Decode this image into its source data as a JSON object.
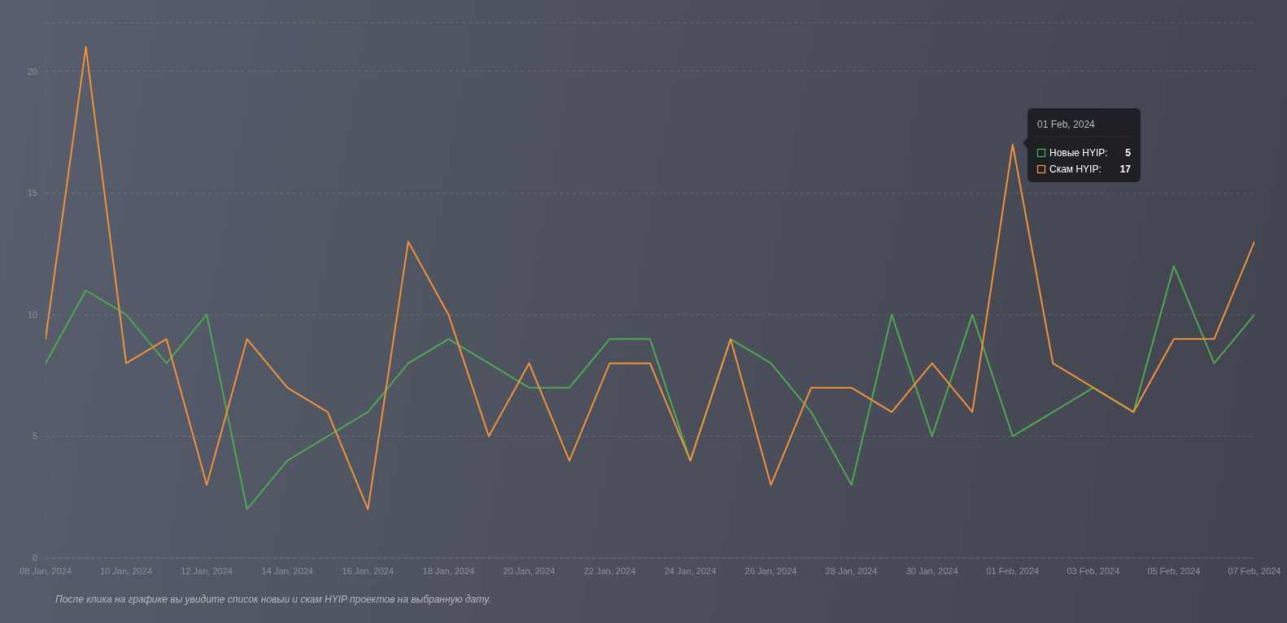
{
  "chart_data": {
    "type": "line",
    "x": [
      "2024-01-08",
      "2024-01-09",
      "2024-01-10",
      "2024-01-11",
      "2024-01-12",
      "2024-01-13",
      "2024-01-14",
      "2024-01-15",
      "2024-01-16",
      "2024-01-17",
      "2024-01-18",
      "2024-01-19",
      "2024-01-20",
      "2024-01-21",
      "2024-01-22",
      "2024-01-23",
      "2024-01-24",
      "2024-01-25",
      "2024-01-26",
      "2024-01-27",
      "2024-01-28",
      "2024-01-29",
      "2024-01-30",
      "2024-01-31",
      "2024-02-01",
      "2024-02-02",
      "2024-02-03",
      "2024-02-04",
      "2024-02-05",
      "2024-02-06",
      "2024-02-07"
    ],
    "series": [
      {
        "name": "Новые HYIP:",
        "color": "#4fa653",
        "values": [
          8,
          11,
          10,
          8,
          10,
          2,
          4,
          5,
          6,
          8,
          9,
          8,
          7,
          7,
          9,
          9,
          4,
          9,
          8,
          6,
          3,
          10,
          5,
          10,
          5,
          6,
          7,
          6,
          12,
          8,
          10
        ]
      },
      {
        "name": "Скам HYIP:",
        "color": "#f0913b",
        "values": [
          9,
          21,
          8,
          9,
          3,
          9,
          7,
          6,
          2,
          13,
          10,
          5,
          8,
          4,
          8,
          8,
          4,
          9,
          3,
          7,
          7,
          6,
          8,
          6,
          17,
          8,
          7,
          6,
          9,
          9,
          13
        ]
      }
    ],
    "xlim": [
      "2024-01-08",
      "2024-02-07"
    ],
    "xticks": [
      {
        "value": "2024-01-08",
        "label": "08 Jan, 2024"
      },
      {
        "value": "2024-01-10",
        "label": "10 Jan, 2024"
      },
      {
        "value": "2024-01-12",
        "label": "12 Jan, 2024"
      },
      {
        "value": "2024-01-14",
        "label": "14 Jan, 2024"
      },
      {
        "value": "2024-01-16",
        "label": "16 Jan, 2024"
      },
      {
        "value": "2024-01-18",
        "label": "18 Jan, 2024"
      },
      {
        "value": "2024-01-20",
        "label": "20 Jan, 2024"
      },
      {
        "value": "2024-01-22",
        "label": "22 Jan, 2024"
      },
      {
        "value": "2024-01-24",
        "label": "24 Jan, 2024"
      },
      {
        "value": "2024-01-26",
        "label": "26 Jan, 2024"
      },
      {
        "value": "2024-01-28",
        "label": "28 Jan, 2024"
      },
      {
        "value": "2024-01-30",
        "label": "30 Jan, 2024"
      },
      {
        "value": "2024-02-01",
        "label": "01 Feb, 2024"
      },
      {
        "value": "2024-02-03",
        "label": "03 Feb, 2024"
      },
      {
        "value": "2024-02-05",
        "label": "05 Feb, 2024"
      },
      {
        "value": "2024-02-07",
        "label": "07 Feb, 2024"
      }
    ],
    "ylim": [
      0,
      22
    ],
    "yticks": [
      0,
      5,
      10,
      15,
      20
    ],
    "grid": "y",
    "legend": "top right",
    "annotations": [
      "01 Feb, 2024",
      "5",
      "17",
      "После клика на графике вы увидите список новыи и скам HYIP проектов на выбранную дату."
    ]
  }
}
